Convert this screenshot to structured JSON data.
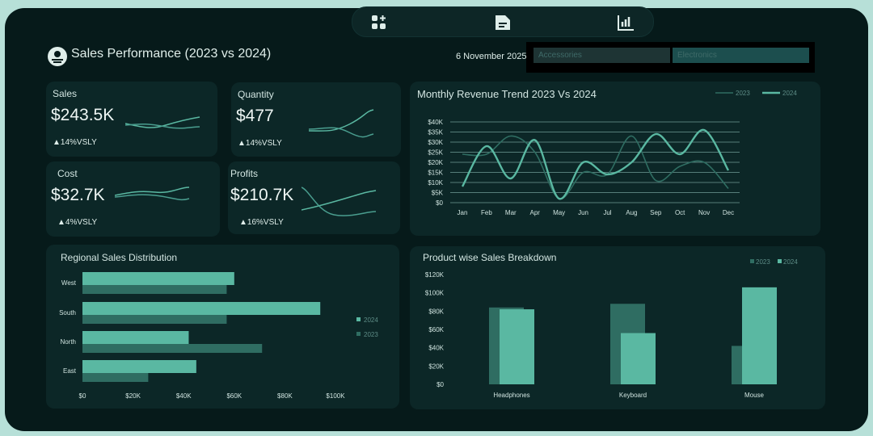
{
  "header": {
    "title": "Sales Performance (2023 vs 2024)",
    "date": "6 November 2025",
    "slicers": [
      "Accessories",
      "Electronics"
    ]
  },
  "nav": {
    "icons": [
      "grid-plus-icon",
      "document-icon",
      "bar-chart-icon"
    ]
  },
  "colors": {
    "series_2024": "#5ab8a2",
    "series_2023": "#2f6d62",
    "panel": "#0c2727",
    "background": "#061a1a"
  },
  "kpis": [
    {
      "label": "Sales",
      "value": "$243.5K",
      "delta": "▲14%VSLY"
    },
    {
      "label": "Quantity",
      "value": "$477",
      "delta": "▲14%VSLY"
    },
    {
      "label": "Cost",
      "value": "$32.7K",
      "delta": "▲4%VSLY"
    },
    {
      "label": "Profits",
      "value": "$210.7K",
      "delta": "▲16%VSLY"
    }
  ],
  "chart_data": [
    {
      "type": "line",
      "title": "Monthly Revenue Trend 2023 Vs 2024",
      "categories": [
        "Jan",
        "Feb",
        "Mar",
        "Apr",
        "May",
        "Jun",
        "Jul",
        "Aug",
        "Sep",
        "Oct",
        "Nov",
        "Dec"
      ],
      "series": [
        {
          "name": "2023",
          "values": [
            24000,
            24000,
            33000,
            25000,
            2000,
            15000,
            14000,
            33000,
            11000,
            18000,
            20000,
            7000
          ]
        },
        {
          "name": "2024",
          "values": [
            8000,
            28000,
            12000,
            31000,
            2000,
            20000,
            14000,
            20000,
            34000,
            24000,
            36000,
            16000
          ]
        }
      ],
      "y_ticks": [
        "$0",
        "$5K",
        "$10K",
        "$15K",
        "$20K",
        "$25K",
        "$30K",
        "$35K",
        "$40K"
      ],
      "ylim": [
        0,
        40000
      ],
      "grid": true,
      "legend": "top-right"
    },
    {
      "type": "bar",
      "orientation": "horizontal",
      "title": "Regional Sales Distribution",
      "categories": [
        "West",
        "South",
        "North",
        "East"
      ],
      "series": [
        {
          "name": "2024",
          "values": [
            60000,
            94000,
            42000,
            45000
          ]
        },
        {
          "name": "2023",
          "values": [
            57000,
            57000,
            71000,
            26000
          ]
        }
      ],
      "x_ticks": [
        "$0",
        "$20K",
        "$40K",
        "$60K",
        "$80K",
        "$100K"
      ],
      "xlim": [
        0,
        100000
      ],
      "legend": "right"
    },
    {
      "type": "bar",
      "title": "Product wise Sales Breakdown",
      "categories": [
        "Headphones",
        "Keyboard",
        "Mouse"
      ],
      "series": [
        {
          "name": "2023",
          "values": [
            84000,
            88000,
            42000
          ]
        },
        {
          "name": "2024",
          "values": [
            82000,
            56000,
            106000
          ]
        }
      ],
      "y_ticks": [
        "$0",
        "$20K",
        "$40K",
        "$60K",
        "$80K",
        "$100K",
        "$120K"
      ],
      "ylim": [
        0,
        120000
      ],
      "legend": "top-right"
    }
  ]
}
